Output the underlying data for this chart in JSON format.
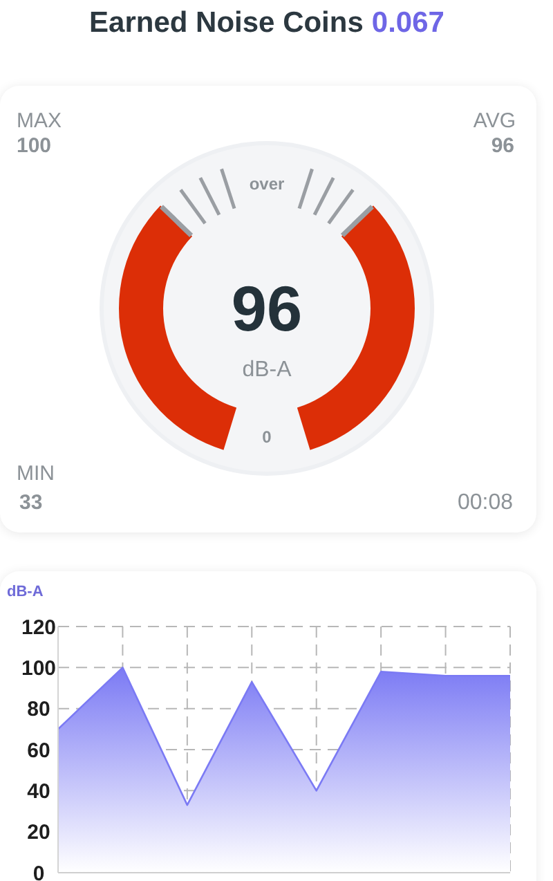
{
  "chart_data": [
    {
      "type": "other",
      "title": "Earned Noise Coins",
      "annotations": [
        "0.067",
        "MAX",
        "100",
        "AVG",
        "96",
        "over",
        "96",
        "dB-A",
        "0",
        "MIN",
        "33",
        "00:08"
      ]
    },
    {
      "type": "area",
      "ylabel": "dB-A",
      "categories": [
        null,
        null,
        null,
        null,
        null,
        null,
        null,
        null
      ],
      "values": [
        70,
        100,
        33,
        93,
        40,
        98,
        96,
        96
      ],
      "color": "#7b7af4",
      "ylim": [
        0,
        120
      ],
      "yticks": [
        0,
        20,
        40,
        60,
        80,
        100,
        120
      ],
      "grid": true,
      "tick_labels": "y"
    }
  ]
}
